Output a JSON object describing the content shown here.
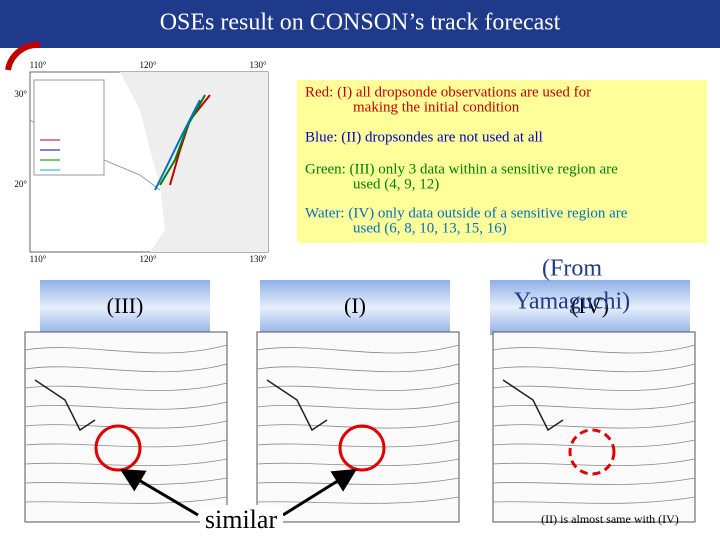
{
  "header": {
    "title": "OSEs result on CONSON’s track forecast"
  },
  "track_map": {
    "lon_labels": [
      "110°",
      "120°",
      "130°"
    ],
    "lat_labels": [
      "30°",
      "20°"
    ]
  },
  "legend": {
    "lines": [
      {
        "first": "Red: (I) all dropsonde observations are used for",
        "second": "making the initial condition",
        "color": "#c00000"
      },
      {
        "first": "Blue: (II) dropsondes are not used at all",
        "color": "#0000c0"
      },
      {
        "first": "Green: (III) only 3 data within a sensitive region are",
        "second": "used (4, 9, 12)",
        "color": "#008000"
      },
      {
        "first": "Water: (IV) only data outside of a sensitive region are",
        "second": "used (6, 8, 10, 13, 15, 16)",
        "color": "#0070c0"
      }
    ]
  },
  "source": {
    "first": "(From",
    "second": "Yamaguchi)"
  },
  "panels": [
    {
      "label": "(III)"
    },
    {
      "label": "(I)"
    },
    {
      "label": "(IV)"
    }
  ],
  "annotations": {
    "similar": "similar",
    "note": "(II) is almost same with (IV)"
  }
}
